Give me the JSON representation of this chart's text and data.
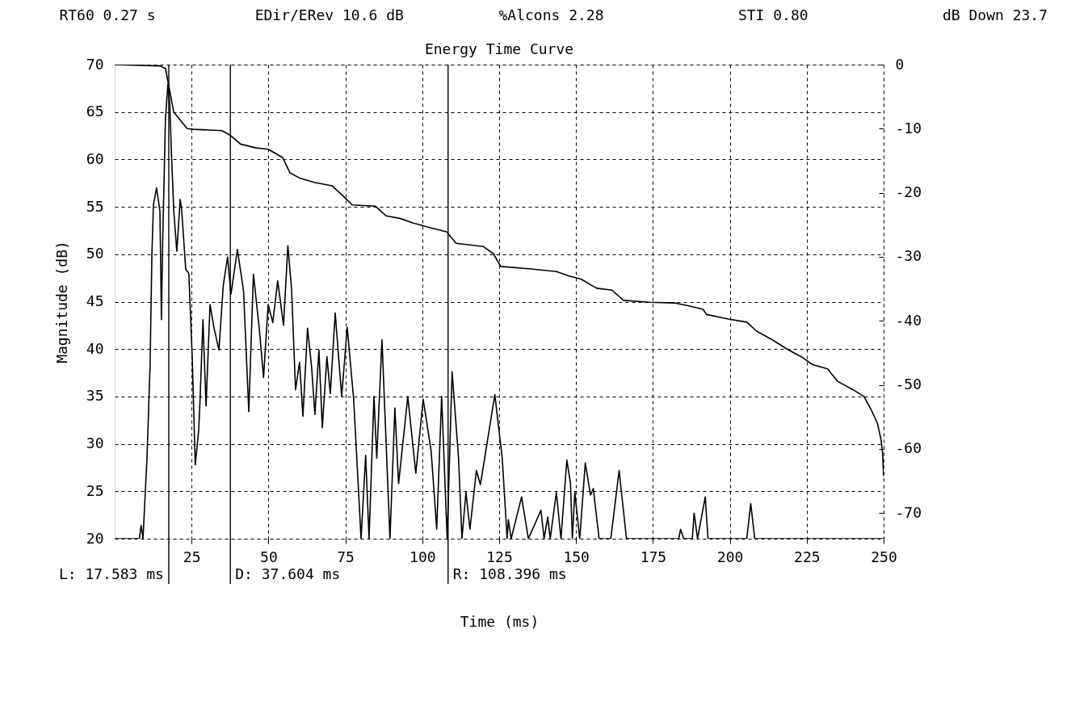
{
  "chart_data": {
    "type": "line",
    "title": "Energy Time Curve",
    "xlabel": "Time (ms)",
    "ylabel": "Magnitude (dB)",
    "annotations": [
      "RT60  0.27 s",
      "EDir/ERev  10.6 dB",
      "%Alcons  2.28",
      "STI 0.80",
      "dB Down 23.7"
    ],
    "xlim": [
      0,
      250
    ],
    "xticks": [
      25,
      50,
      75,
      100,
      125,
      150,
      175,
      200,
      225,
      250
    ],
    "ylim": [
      20,
      70
    ],
    "yticks": [
      20,
      25,
      30,
      35,
      40,
      45,
      50,
      55,
      60,
      65,
      70
    ],
    "y2lim": [
      -74,
      0
    ],
    "y2ticks": [
      0,
      -10,
      -20,
      -30,
      -40,
      -50,
      -60,
      -70
    ],
    "grid": true,
    "series": [
      {
        "color": "#000000",
        "axis": "y",
        "x": [
          0,
          8.0,
          8.6,
          9.2,
          10.5,
          11.5,
          12.1,
          12.6,
          13.6,
          14.7,
          15.2,
          15.6,
          16.5,
          17.3,
          17.9,
          18.4,
          19.2,
          20.2,
          21.3,
          21.8,
          23.1,
          24.1,
          25.2,
          26.2,
          27.3,
          27.8,
          28.7,
          29.7,
          31.0,
          32.3,
          33.9,
          35.3,
          36.7,
          37.8,
          39.9,
          41.9,
          43.6,
          45.1,
          47.0,
          48.4,
          49.9,
          51.4,
          53.0,
          54.9,
          56.3,
          57.5,
          58.8,
          60.1,
          61.2,
          62.7,
          64.0,
          65.1,
          66.4,
          67.5,
          69.0,
          70.1,
          71.7,
          73.8,
          75.6,
          77.7,
          80.1,
          81.6,
          82.7,
          84.3,
          85.2,
          86.9,
          89.5,
          91.1,
          92.3,
          95.3,
          97.9,
          100.3,
          102.9,
          104.7,
          106.3,
          108.1,
          109.7,
          111.8,
          112.9,
          114.2,
          115.5,
          117.6,
          118.9,
          123.6,
          126.0,
          127.6,
          128.0,
          128.9,
          132.3,
          134.5,
          138.6,
          139.6,
          140.8,
          141.6,
          143.6,
          145.1,
          147.0,
          148.2,
          148.8,
          149.6,
          151.2,
          153.0,
          154.7,
          155.6,
          157.5,
          161.3,
          164.0,
          166.4,
          183.4,
          184.0,
          185.0,
          187.8,
          188.4,
          189.5,
          192.0,
          192.9,
          205.5,
          206.8,
          208.1,
          250
        ],
        "values": [
          20,
          20,
          21.4,
          20,
          28.5,
          38.2,
          50.0,
          55.2,
          57.0,
          54.6,
          43.1,
          51.3,
          64.3,
          67.9,
          65.9,
          61.1,
          54.6,
          50.3,
          55.8,
          54.6,
          48.4,
          48.0,
          39.2,
          27.8,
          31.4,
          35.0,
          43.1,
          34.0,
          44.7,
          42.2,
          39.9,
          46.7,
          49.7,
          45.8,
          50.5,
          46.1,
          33.4,
          47.9,
          42.2,
          37.0,
          44.7,
          42.8,
          47.2,
          42.5,
          50.9,
          46.4,
          35.7,
          38.6,
          32.9,
          42.2,
          38.2,
          33.1,
          39.9,
          31.7,
          39.2,
          35.3,
          43.8,
          35.0,
          42.3,
          34.7,
          20,
          28.8,
          20,
          35.0,
          28.5,
          41.0,
          20,
          33.8,
          25.8,
          35.0,
          26.9,
          34.7,
          29.2,
          21.0,
          35.0,
          20,
          37.6,
          28.5,
          20,
          24.9,
          21.0,
          27.2,
          25.7,
          35.2,
          28.5,
          20,
          22.0,
          20,
          24.4,
          20,
          23.0,
          20,
          22.3,
          20,
          24.9,
          20,
          28.3,
          25.8,
          20,
          24.9,
          20,
          28.0,
          24.6,
          25.3,
          20,
          20,
          27.2,
          20,
          20,
          21.0,
          20,
          20,
          22.7,
          20,
          24.4,
          20,
          20,
          23.7,
          20,
          20
        ]
      },
      {
        "color": "#000000",
        "axis": "y2",
        "x": [
          0,
          14.7,
          16.5,
          19.2,
          23.6,
          25.7,
          34.9,
          37.8,
          40.9,
          45.9,
          49.9,
          54.6,
          57.0,
          60.1,
          65.1,
          70.6,
          74.5,
          77.2,
          84.8,
          88.2,
          92.7,
          96.9,
          102.9,
          107.9,
          111.0,
          119.9,
          123.1,
          125.5,
          135.4,
          143.6,
          147.8,
          151.7,
          156.7,
          161.7,
          165.4,
          174.0,
          181.9,
          186.1,
          191.3,
          192.4,
          199.5,
          205.5,
          208.7,
          213.6,
          218.6,
          223.9,
          226.8,
          231.8,
          234.9,
          239.9,
          243.6,
          245.9,
          248.0,
          249.1,
          249.6,
          250
        ],
        "values": [
          0,
          -0.2,
          -0.6,
          -7.4,
          -10.0,
          -10.1,
          -10.3,
          -11.1,
          -12.4,
          -13.0,
          -13.2,
          -14.5,
          -16.9,
          -17.7,
          -18.4,
          -18.9,
          -20.6,
          -21.9,
          -22.1,
          -23.6,
          -24.0,
          -24.7,
          -25.5,
          -26.1,
          -27.9,
          -28.4,
          -29.5,
          -31.5,
          -31.9,
          -32.3,
          -33.0,
          -33.5,
          -34.9,
          -35.2,
          -36.8,
          -37.1,
          -37.2,
          -37.6,
          -38.2,
          -39.0,
          -39.7,
          -40.2,
          -41.6,
          -42.9,
          -44.4,
          -45.8,
          -46.8,
          -47.5,
          -49.4,
          -50.7,
          -51.8,
          -53.8,
          -56.0,
          -58.4,
          -60.3,
          -64.2
        ]
      }
    ],
    "ref_lines": [
      {
        "axis": "x",
        "value": 17.583,
        "label": "L: 17.583 ms"
      },
      {
        "axis": "x",
        "value": 37.604,
        "label": "D: 37.604 ms"
      },
      {
        "axis": "x",
        "value": 108.396,
        "label": "R: 108.396 ms"
      }
    ]
  }
}
